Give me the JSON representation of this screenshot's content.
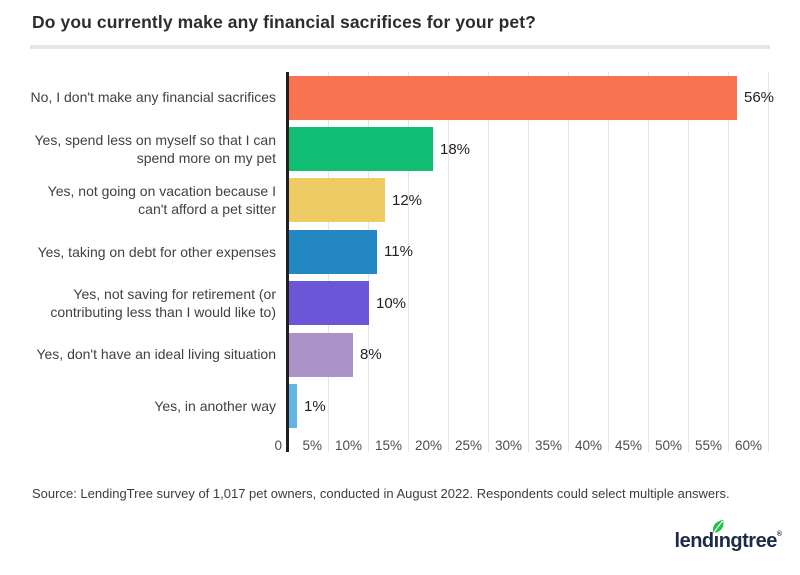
{
  "title": "Do you currently make any financial sacrifices for your pet?",
  "source": "Source: LendingTree survey of 1,017 pet owners, conducted in August 2022. Respondents could select multiple answers.",
  "logo": {
    "text": "lendingtree",
    "registered": "®",
    "navy": "#1b2b49",
    "leaf_green": "#1ec346"
  },
  "chart_data": {
    "type": "bar",
    "orientation": "horizontal",
    "title": "Do you currently make any financial sacrifices for your pet?",
    "categories": [
      "No, I don't make any financial sacrifices",
      "Yes, spend less on myself so that I can spend more on my pet",
      "Yes, not going on vacation because I can't afford a pet sitter",
      "Yes, taking on debt for other expenses",
      "Yes, not saving for retirement (or contributing less than I would like to)",
      "Yes, don't have an ideal living situation",
      "Yes, in another way"
    ],
    "values": [
      56,
      18,
      12,
      11,
      10,
      8,
      1
    ],
    "value_labels": [
      "56%",
      "18%",
      "12%",
      "11%",
      "10%",
      "8%",
      "1%"
    ],
    "bar_colors": [
      "#fa7351",
      "#10bd72",
      "#eecb63",
      "#2387c1",
      "#6b56d8",
      "#ab93c8",
      "#63b5e6"
    ],
    "x_ticks": [
      "0",
      "5%",
      "10%",
      "15%",
      "20%",
      "25%",
      "30%",
      "35%",
      "40%",
      "45%",
      "50%",
      "55%",
      "60%"
    ],
    "xlabel": "",
    "ylabel": "",
    "xlim": [
      0,
      60
    ],
    "grid": true,
    "legend": false
  }
}
